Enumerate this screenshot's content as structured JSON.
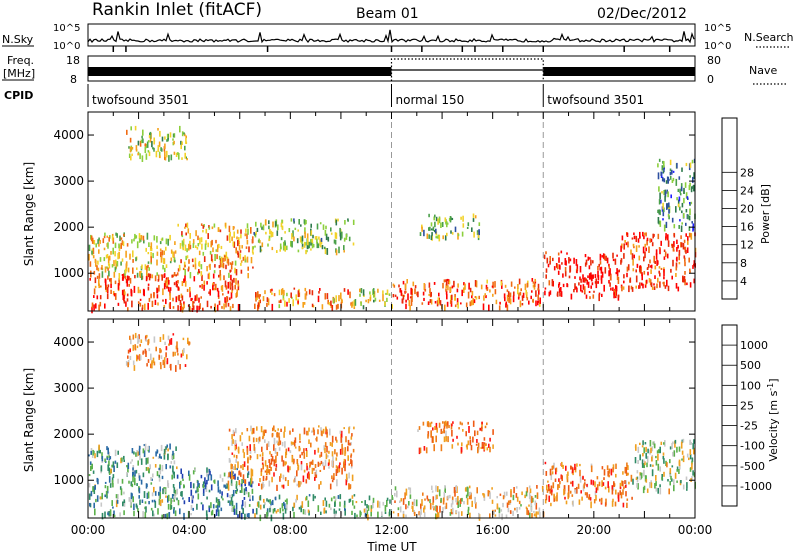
{
  "header": {
    "station": "Rankin Inlet (fitACF)",
    "beam": "Beam 01",
    "date": "02/Dec/2012"
  },
  "top_panels": {
    "nsky_label": "N.Sky",
    "nsky_ticks": [
      "10^5",
      "10^0"
    ],
    "nsearch_label": "N.Search",
    "freq_label": "Freq.",
    "freq_unit": "[MHz]",
    "freq_ticks": [
      "18",
      "8"
    ],
    "nave_ticks": [
      "80",
      "0"
    ],
    "nave_label": "Nave",
    "cpid_label": "CPID",
    "cpid_segments": [
      {
        "label": "twofsound 3501",
        "start_h": 0,
        "end_h": 12
      },
      {
        "label": "normal 150",
        "start_h": 12,
        "end_h": 18
      },
      {
        "label": "twofsound 3501",
        "start_h": 18,
        "end_h": 24
      }
    ]
  },
  "colors": {
    "power_scale": [
      "#1f1fff",
      "#2d4fa0",
      "#2e7a4d",
      "#4aa04a",
      "#8ccf3c",
      "#f2d22a",
      "#f5a21c",
      "#f06a12",
      "#e82a0a",
      "#ff0000"
    ],
    "velocity_scale": [
      "#1f3fb0",
      "#2a6aa5",
      "#2f8a66",
      "#5bb04a",
      "#c8c8c8",
      "#f0a020",
      "#ef7d18",
      "#ee5a14",
      "#ff1010"
    ]
  },
  "chart_data": [
    {
      "type": "heatmap",
      "panel": "power",
      "xlabel": "Time UT",
      "ylabel": "Slant Range [km]",
      "xlim": [
        0,
        24
      ],
      "ylim": [
        180,
        4500
      ],
      "x_ticks": [
        "00:00",
        "04:00",
        "08:00",
        "12:00",
        "16:00",
        "20:00",
        "00:00"
      ],
      "y_ticks": [
        "1000",
        "2000",
        "3000",
        "4000"
      ],
      "y_tick_values": [
        1000,
        2000,
        3000,
        4000
      ],
      "colorbar": {
        "label": "Power [dB]",
        "ticks": [
          "4",
          "8",
          "12",
          "16",
          "20",
          "24",
          "28"
        ],
        "range": [
          0,
          30
        ]
      },
      "regions": [
        {
          "t": [
            0.0,
            6.0
          ],
          "r": [
            250,
            1000
          ],
          "level": 0.85
        },
        {
          "t": [
            0.0,
            3.5
          ],
          "r": [
            1000,
            1900
          ],
          "level": 0.55
        },
        {
          "t": [
            3.5,
            6.5
          ],
          "r": [
            1000,
            2100
          ],
          "level": 0.65
        },
        {
          "t": [
            6.5,
            10.5
          ],
          "r": [
            300,
            700
          ],
          "level": 0.7
        },
        {
          "t": [
            6.5,
            10.5
          ],
          "r": [
            1500,
            2200
          ],
          "level": 0.4
        },
        {
          "t": [
            10.5,
            12.0
          ],
          "r": [
            300,
            700
          ],
          "level": 0.5
        },
        {
          "t": [
            12.0,
            18.0
          ],
          "r": [
            300,
            900
          ],
          "level": 0.8
        },
        {
          "t": [
            13.0,
            15.5
          ],
          "r": [
            1800,
            2300
          ],
          "level": 0.4
        },
        {
          "t": [
            18.0,
            21.0
          ],
          "r": [
            500,
            1500
          ],
          "level": 0.98
        },
        {
          "t": [
            21.0,
            24.0
          ],
          "r": [
            700,
            1900
          ],
          "level": 0.85
        },
        {
          "t": [
            1.5,
            4.0
          ],
          "r": [
            3500,
            4200
          ],
          "level": 0.5
        },
        {
          "t": [
            22.5,
            24.0
          ],
          "r": [
            2000,
            3500
          ],
          "level": 0.3
        }
      ]
    },
    {
      "type": "heatmap",
      "panel": "velocity",
      "xlabel": "Time UT",
      "ylabel": "Slant Range [km]",
      "xlim": [
        0,
        24
      ],
      "ylim": [
        180,
        4500
      ],
      "x_ticks": [
        "00:00",
        "04:00",
        "08:00",
        "12:00",
        "16:00",
        "20:00",
        "00:00"
      ],
      "y_ticks": [
        "1000",
        "2000",
        "3000",
        "4000"
      ],
      "y_tick_values": [
        1000,
        2000,
        3000,
        4000
      ],
      "colorbar": {
        "label": "Velocity [m s^-1]",
        "ticks": [
          "1000",
          "500",
          "100",
          "25",
          "-25",
          "-100",
          "-500",
          "-1000"
        ],
        "range": [
          -1000,
          1000
        ]
      },
      "regions": [
        {
          "t": [
            0.0,
            3.5
          ],
          "r": [
            250,
            1800
          ],
          "level": 0.35
        },
        {
          "t": [
            3.5,
            6.5
          ],
          "r": [
            250,
            1300
          ],
          "level": 0.25
        },
        {
          "t": [
            5.5,
            10.5
          ],
          "r": [
            900,
            2200
          ],
          "level": 0.7
        },
        {
          "t": [
            6.5,
            12.0
          ],
          "r": [
            250,
            700
          ],
          "level": 0.4
        },
        {
          "t": [
            12.0,
            18.0
          ],
          "r": [
            250,
            900
          ],
          "level": 0.6
        },
        {
          "t": [
            13.0,
            16.0
          ],
          "r": [
            1700,
            2300
          ],
          "level": 0.75
        },
        {
          "t": [
            18.0,
            21.5
          ],
          "r": [
            500,
            1400
          ],
          "level": 0.75
        },
        {
          "t": [
            21.5,
            24.0
          ],
          "r": [
            800,
            1900
          ],
          "level": 0.45
        },
        {
          "t": [
            1.5,
            4.0
          ],
          "r": [
            3500,
            4200
          ],
          "level": 0.7
        }
      ]
    }
  ]
}
